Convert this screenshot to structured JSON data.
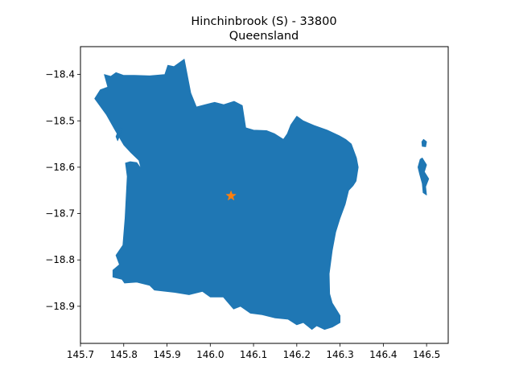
{
  "figure": {
    "title_line1": "Hinchinbrook (S) - 33800",
    "title_line2": "Queensland"
  },
  "chart_data": {
    "type": "map",
    "title": "Hinchinbrook (S) - 33800\nQueensland",
    "xlim": [
      145.7,
      146.55
    ],
    "ylim": [
      -18.98,
      -18.34
    ],
    "x_ticks": [
      145.7,
      145.8,
      145.9,
      146.0,
      146.1,
      146.2,
      146.3,
      146.4,
      146.5
    ],
    "x_tick_labels": [
      "145.7",
      "145.8",
      "145.9",
      "146.0",
      "146.1",
      "146.2",
      "146.3",
      "146.4",
      "146.5"
    ],
    "y_ticks": [
      -18.4,
      -18.5,
      -18.6,
      -18.7,
      -18.8,
      -18.9
    ],
    "y_tick_labels": [
      "−18.4",
      "−18.5",
      "−18.6",
      "−18.7",
      "−18.8",
      "−18.9"
    ],
    "grid": false,
    "region_color": "#1f77b4",
    "marker_color": "#ff7f0e",
    "marker": {
      "shape": "star",
      "lon": 146.048,
      "lat": -18.662
    },
    "regions": [
      {
        "part": "mainland",
        "coords": [
          [
            145.733,
            -18.452
          ],
          [
            145.746,
            -18.433
          ],
          [
            145.763,
            -18.427
          ],
          [
            145.755,
            -18.4
          ],
          [
            145.77,
            -18.404
          ],
          [
            145.782,
            -18.396
          ],
          [
            145.8,
            -18.402
          ],
          [
            145.825,
            -18.402
          ],
          [
            145.86,
            -18.403
          ],
          [
            145.895,
            -18.4
          ],
          [
            145.902,
            -18.38
          ],
          [
            145.916,
            -18.383
          ],
          [
            145.94,
            -18.367
          ],
          [
            145.955,
            -18.44
          ],
          [
            145.968,
            -18.47
          ],
          [
            146.01,
            -18.46
          ],
          [
            146.031,
            -18.465
          ],
          [
            146.055,
            -18.458
          ],
          [
            146.074,
            -18.467
          ],
          [
            146.082,
            -18.515
          ],
          [
            146.1,
            -18.52
          ],
          [
            146.13,
            -18.521
          ],
          [
            146.149,
            -18.528
          ],
          [
            146.169,
            -18.54
          ],
          [
            146.178,
            -18.528
          ],
          [
            146.186,
            -18.509
          ],
          [
            146.2,
            -18.49
          ],
          [
            146.215,
            -18.5
          ],
          [
            146.24,
            -18.51
          ],
          [
            146.27,
            -18.52
          ],
          [
            146.298,
            -18.532
          ],
          [
            146.313,
            -18.54
          ],
          [
            146.326,
            -18.55
          ],
          [
            146.338,
            -18.58
          ],
          [
            146.342,
            -18.6
          ],
          [
            146.337,
            -18.63
          ],
          [
            146.33,
            -18.64
          ],
          [
            146.32,
            -18.65
          ],
          [
            146.312,
            -18.68
          ],
          [
            146.3,
            -18.71
          ],
          [
            146.29,
            -18.74
          ],
          [
            146.282,
            -18.78
          ],
          [
            146.275,
            -18.83
          ],
          [
            146.276,
            -18.873
          ],
          [
            146.282,
            -18.893
          ],
          [
            146.3,
            -18.92
          ],
          [
            146.3,
            -18.935
          ],
          [
            146.282,
            -18.945
          ],
          [
            146.264,
            -18.95
          ],
          [
            146.246,
            -18.942
          ],
          [
            146.235,
            -18.95
          ],
          [
            146.215,
            -18.935
          ],
          [
            146.2,
            -18.94
          ],
          [
            146.18,
            -18.928
          ],
          [
            146.15,
            -18.925
          ],
          [
            146.12,
            -18.918
          ],
          [
            146.093,
            -18.915
          ],
          [
            146.07,
            -18.9
          ],
          [
            146.054,
            -18.906
          ],
          [
            146.03,
            -18.88
          ],
          [
            146.0,
            -18.88
          ],
          [
            145.982,
            -18.868
          ],
          [
            145.951,
            -18.875
          ],
          [
            145.918,
            -18.87
          ],
          [
            145.871,
            -18.865
          ],
          [
            145.86,
            -18.855
          ],
          [
            145.83,
            -18.848
          ],
          [
            145.802,
            -18.85
          ],
          [
            145.796,
            -18.842
          ],
          [
            145.775,
            -18.837
          ],
          [
            145.775,
            -18.822
          ],
          [
            145.79,
            -18.81
          ],
          [
            145.782,
            -18.79
          ],
          [
            145.798,
            -18.768
          ],
          [
            145.803,
            -18.71
          ],
          [
            145.808,
            -18.62
          ],
          [
            145.804,
            -18.591
          ],
          [
            145.815,
            -18.588
          ],
          [
            145.83,
            -18.59
          ],
          [
            145.84,
            -18.603
          ],
          [
            145.835,
            -18.585
          ],
          [
            145.815,
            -18.567
          ],
          [
            145.8,
            -18.552
          ],
          [
            145.78,
            -18.52
          ],
          [
            145.76,
            -18.487
          ],
          [
            145.733,
            -18.452
          ]
        ]
      },
      {
        "part": "north-west-strip",
        "coords": [
          [
            145.797,
            -18.517
          ],
          [
            145.786,
            -18.543
          ],
          [
            145.782,
            -18.534
          ],
          [
            145.79,
            -18.515
          ]
        ]
      },
      {
        "part": "outer-island",
        "coords": [
          [
            146.49,
            -18.58
          ],
          [
            146.5,
            -18.595
          ],
          [
            146.495,
            -18.61
          ],
          [
            146.505,
            -18.625
          ],
          [
            146.498,
            -18.642
          ],
          [
            146.5,
            -18.66
          ],
          [
            146.492,
            -18.655
          ],
          [
            146.49,
            -18.635
          ],
          [
            146.484,
            -18.615
          ],
          [
            146.48,
            -18.6
          ],
          [
            146.485,
            -18.583
          ]
        ]
      },
      {
        "part": "outer-islet",
        "coords": [
          [
            146.493,
            -18.54
          ],
          [
            146.5,
            -18.545
          ],
          [
            146.498,
            -18.556
          ],
          [
            146.49,
            -18.555
          ],
          [
            146.489,
            -18.545
          ]
        ]
      }
    ]
  }
}
